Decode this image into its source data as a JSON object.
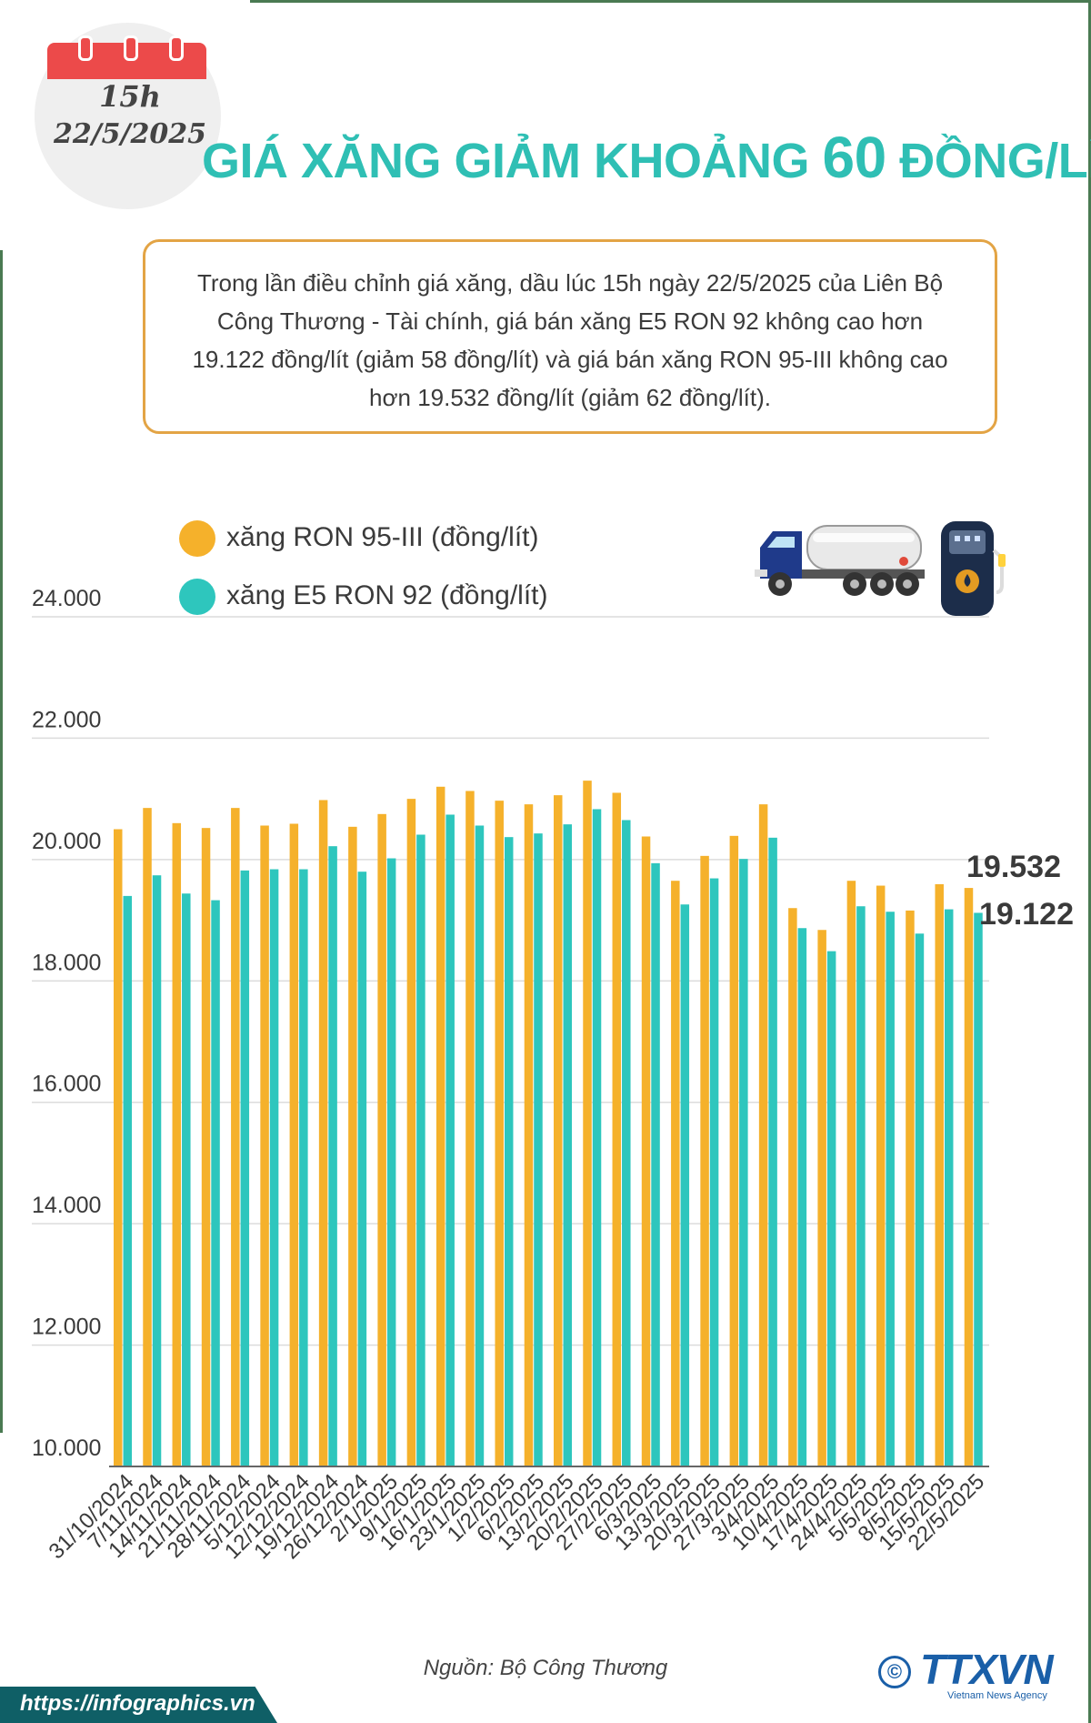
{
  "header": {
    "time": "15h",
    "date": "22/5/2025",
    "title_prefix": "GIÁ XĂNG GIẢM KHOẢNG",
    "title_number": "60",
    "title_suffix": "ĐỒNG/LÍT"
  },
  "intro": {
    "text": "Trong lần điều chỉnh giá xăng, dầu lúc 15h ngày 22/5/2025 của Liên Bộ Công Thương - Tài chính, giá bán xăng E5 RON 92 không cao hơn 19.122 đồng/lít (giảm 58 đồng/lít) và giá bán xăng RON 95-III không cao hơn 19.532 đồng/lít (giảm 62 đồng/lít)."
  },
  "colors": {
    "ron95": "#f5b12b",
    "e5": "#2ec6bd",
    "title": "#2fbfb4",
    "box_border": "#e3a445"
  },
  "icons": {
    "calendar": "calendar-icon",
    "truck": "tanker-truck-icon",
    "pump": "fuel-pump-icon"
  },
  "chart_data": {
    "type": "bar",
    "categories": [
      "31/10/2024",
      "7/11/2024",
      "14/11/2024",
      "21/11/2024",
      "28/11/2024",
      "5/12/2024",
      "12/12/2024",
      "19/12/2024",
      "26/12/2024",
      "2/1/2025",
      "9/1/2025",
      "16/1/2025",
      "23/1/2025",
      "1/2/2025",
      "6/2/2025",
      "13/2/2025",
      "20/2/2025",
      "27/2/2025",
      "6/3/2025",
      "13/3/2025",
      "20/3/2025",
      "27/3/2025",
      "3/4/2025",
      "10/4/2025",
      "17/4/2025",
      "24/4/2025",
      "5/5/2025",
      "8/5/2025",
      "15/5/2025",
      "22/5/2025"
    ],
    "series": [
      {
        "name": "xăng RON 95-III (đồng/lít)",
        "color": "#f5b12b",
        "values": [
          20500,
          20850,
          20600,
          20520,
          20850,
          20560,
          20590,
          20980,
          20540,
          20750,
          21000,
          21200,
          21130,
          20970,
          20910,
          21060,
          21300,
          21100,
          20380,
          19650,
          20060,
          20390,
          20910,
          19200,
          18840,
          19650,
          19570,
          19160,
          19594,
          19532
        ]
      },
      {
        "name": "xăng E5 RON 92 (đồng/lít)",
        "color": "#2ec6bd",
        "values": [
          19400,
          19740,
          19440,
          19330,
          19820,
          19840,
          19840,
          20220,
          19800,
          20020,
          20410,
          20740,
          20560,
          20370,
          20430,
          20580,
          20830,
          20650,
          19940,
          19260,
          19690,
          20010,
          20360,
          18870,
          18490,
          19230,
          19140,
          18780,
          19180,
          19122
        ]
      }
    ],
    "value_labels": [
      "19.532",
      "19.122"
    ],
    "yticks": [
      "10.000",
      "12.000",
      "14.000",
      "16.000",
      "18.000",
      "20.000",
      "22.000",
      "24.000"
    ],
    "ytick_values": [
      10000,
      12000,
      14000,
      16000,
      18000,
      20000,
      22000,
      24000
    ],
    "ylim": [
      10000,
      24000
    ],
    "grid": true,
    "legend_placement": "top-left"
  },
  "footer": {
    "source": "Nguồn: Bộ Công Thương",
    "url": "https://infographics.vn",
    "logo": "TTXVN",
    "logo_sub": "Vietnam News Agency",
    "copyright": "©"
  }
}
